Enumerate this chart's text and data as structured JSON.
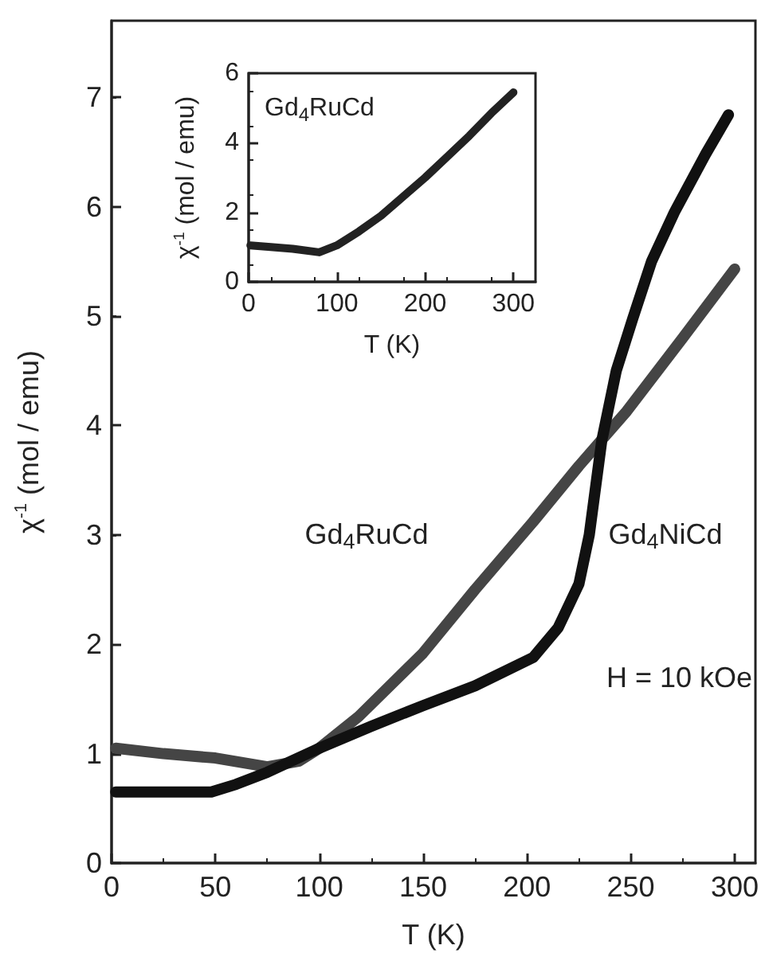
{
  "chart_data": [
    {
      "type": "line",
      "xlabel": "T (K)",
      "ylabel": "χ$^{-1}$ (mol / emu)",
      "xlim": [
        0,
        310
      ],
      "xticks": [
        0,
        50,
        100,
        150,
        200,
        250,
        300
      ],
      "ylim": [
        0,
        7.7
      ],
      "yticks": [
        0,
        1,
        2,
        3,
        4,
        5,
        6,
        7
      ],
      "grid": false,
      "annotations": [
        "H = 10 kOe"
      ],
      "series": [
        {
          "name": "Gd$_{4}$RuCd",
          "color": "#454545",
          "x": [
            2,
            25,
            50,
            75,
            90,
            100,
            119,
            150,
            175,
            203,
            225,
            248,
            275,
            300
          ],
          "values": [
            1.05,
            1.0,
            0.96,
            0.88,
            0.93,
            1.05,
            1.34,
            1.92,
            2.5,
            3.12,
            3.63,
            4.13,
            4.8,
            5.43
          ]
        },
        {
          "name": "Gd$_{4}$NiCd",
          "color": "#111111",
          "x": [
            2,
            48,
            60,
            75,
            100,
            125,
            150,
            175,
            203,
            215,
            225,
            230,
            236,
            243,
            251,
            260,
            271,
            286,
            297
          ],
          "values": [
            0.65,
            0.65,
            0.72,
            0.83,
            1.05,
            1.25,
            1.44,
            1.62,
            1.88,
            2.15,
            2.55,
            3.0,
            3.86,
            4.5,
            4.98,
            5.5,
            5.95,
            6.48,
            6.84
          ]
        }
      ]
    },
    {
      "type": "line",
      "xlabel": "T (K)",
      "ylabel": "χ$^{-1}$ (mol / emu)",
      "xlim": [
        0,
        325
      ],
      "xticks": [
        0,
        100,
        200,
        300
      ],
      "ylim": [
        0,
        6
      ],
      "yticks": [
        0,
        2,
        4,
        6
      ],
      "grid": false,
      "series": [
        {
          "name": "Gd$_{4}$RuCd",
          "color": "#222222",
          "x": [
            2,
            25,
            50,
            80,
            100,
            125,
            150,
            175,
            200,
            225,
            250,
            275,
            300
          ],
          "values": [
            1.05,
            1.0,
            0.95,
            0.85,
            1.05,
            1.45,
            1.9,
            2.45,
            3.0,
            3.6,
            4.2,
            4.85,
            5.45
          ]
        }
      ]
    }
  ]
}
